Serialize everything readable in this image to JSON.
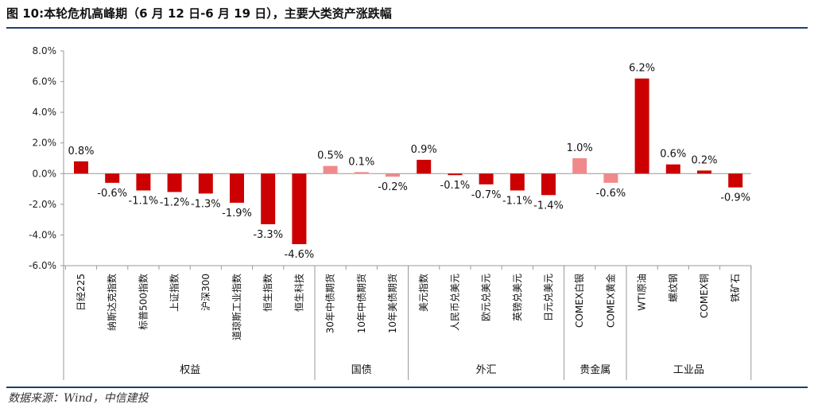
{
  "title": "图 10:本轮危机高峰期（6 月 12 日-6 月 19 日），主要大类资产涨跌幅",
  "source": "数据来源：Wind，中信建投",
  "colors": {
    "main": "#cc0000",
    "light": "#f08a8a",
    "rule": "#1f3f73"
  },
  "chart_data": {
    "type": "bar",
    "ylim": [
      -6,
      8
    ],
    "yticks": [
      "8.0%",
      "6.0%",
      "4.0%",
      "2.0%",
      "0.0%",
      "-2.0%",
      "-4.0%",
      "-6.0%"
    ],
    "yunit": "%",
    "grid": false,
    "categories": [
      "日经225",
      "纳斯达克指数",
      "标普500指数",
      "上证指数",
      "沪深300",
      "道琼斯工业指数",
      "恒生指数",
      "恒生科技",
      "30年中债期货",
      "10年中债期货",
      "10年美债期货",
      "美元指数",
      "人民币兑美元",
      "欧元兑美元",
      "英镑兑美元",
      "日元兑美元",
      "COMEX白银",
      "COMEX黄金",
      "WTI原油",
      "螺纹钢",
      "COMEX铜",
      "铁矿石"
    ],
    "values": [
      0.8,
      -0.6,
      -1.1,
      -1.2,
      -1.3,
      -1.9,
      -3.3,
      -4.6,
      0.5,
      0.1,
      -0.2,
      0.9,
      -0.1,
      -0.7,
      -1.1,
      -1.4,
      1.0,
      -0.6,
      6.2,
      0.6,
      0.2,
      -0.9
    ],
    "value_labels": [
      "0.8%",
      "-0.6%",
      "-1.1%",
      "-1.2%",
      "-1.3%",
      "-1.9%",
      "-3.3%",
      "-4.6%",
      "0.5%",
      "0.1%",
      "-0.2%",
      "0.9%",
      "-0.1%",
      "-0.7%",
      "-1.1%",
      "-1.4%",
      "1.0%",
      "-0.6%",
      "6.2%",
      "0.6%",
      "0.2%",
      "-0.9%"
    ],
    "bar_colors": [
      "main",
      "main",
      "main",
      "main",
      "main",
      "main",
      "main",
      "main",
      "light",
      "light",
      "light",
      "main",
      "main",
      "main",
      "main",
      "main",
      "light",
      "light",
      "main",
      "main",
      "main",
      "main"
    ],
    "groups": [
      {
        "name": "权益",
        "start": 0,
        "end": 7
      },
      {
        "name": "国债",
        "start": 8,
        "end": 10
      },
      {
        "name": "外汇",
        "start": 11,
        "end": 15
      },
      {
        "name": "贵金属",
        "start": 16,
        "end": 17
      },
      {
        "name": "工业品",
        "start": 18,
        "end": 21
      }
    ]
  }
}
